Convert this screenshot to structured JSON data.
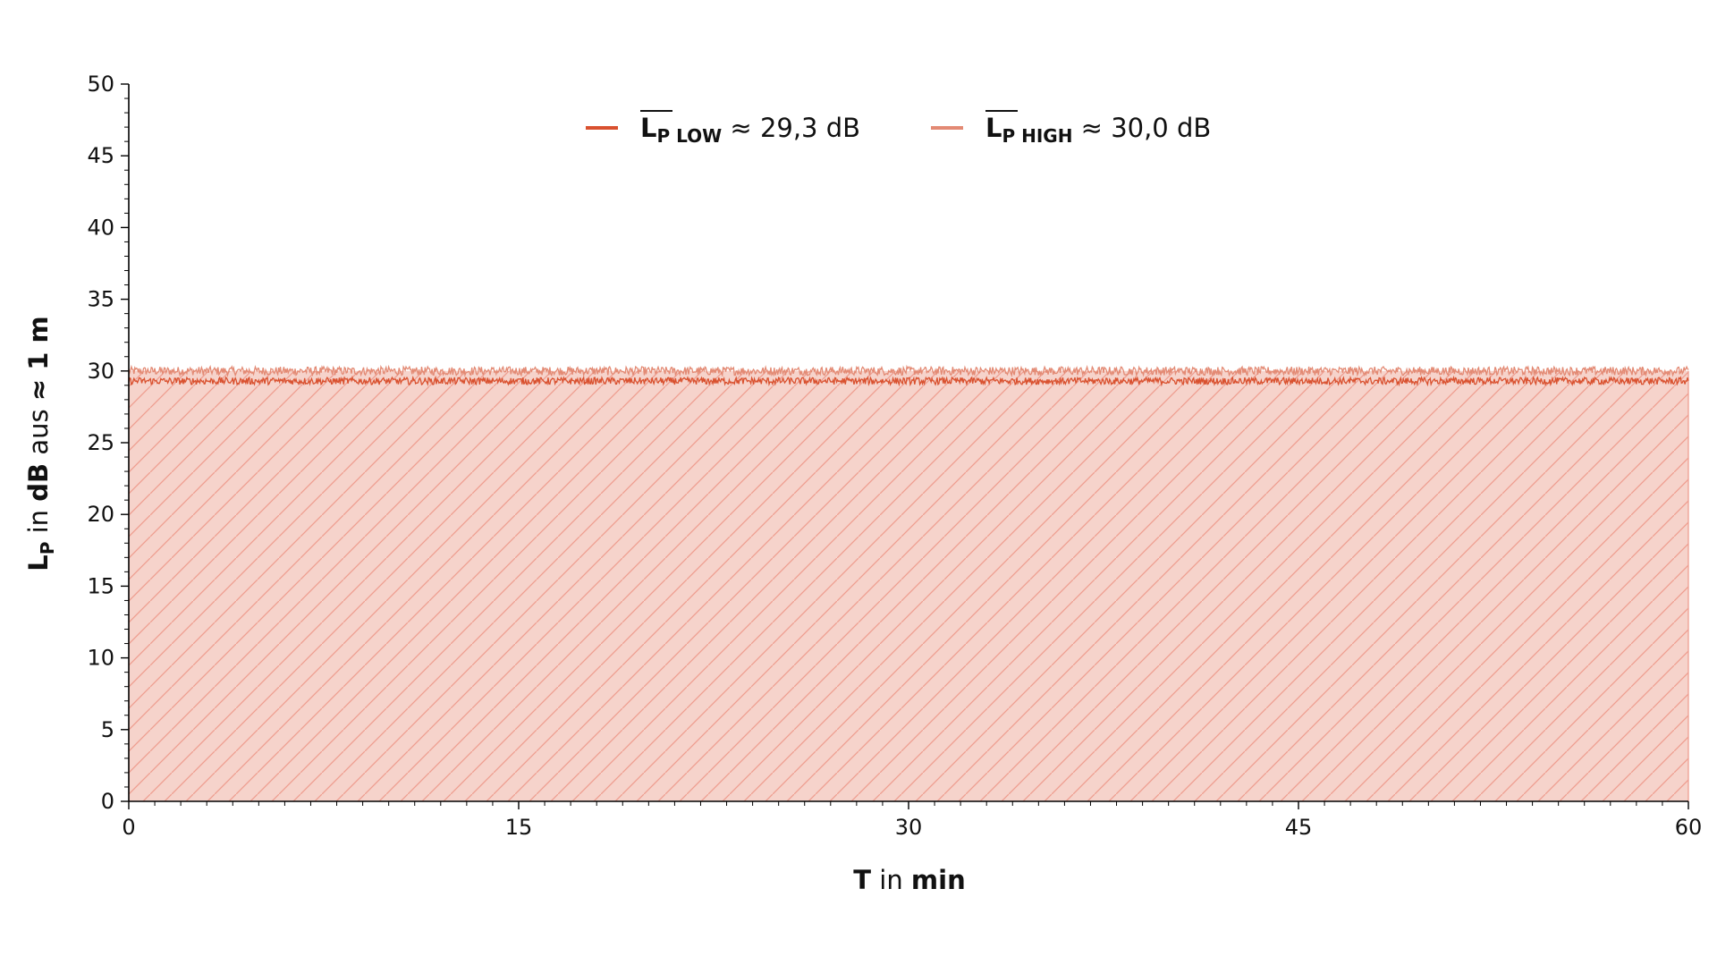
{
  "chart_data": {
    "type": "line",
    "title": "",
    "xlabel": {
      "bold1": "T",
      "regular": " in ",
      "bold2": "min"
    },
    "ylabel": {
      "bold_main": "L",
      "sub": "P",
      "regular1": " in ",
      "bold_unit": "dB",
      "regular2": " aus ",
      "bold_dist": "≈ 1 m"
    },
    "xlim": [
      0,
      60
    ],
    "ylim": [
      0,
      50
    ],
    "x_ticks": [
      0,
      15,
      30,
      45,
      60
    ],
    "x_tick_labels": [
      "0",
      "15",
      "30",
      "45",
      "60"
    ],
    "y_ticks": [
      0,
      5,
      10,
      15,
      20,
      25,
      30,
      35,
      40,
      45,
      50
    ],
    "y_tick_labels": [
      "0",
      "5",
      "10",
      "15",
      "20",
      "25",
      "30",
      "35",
      "40",
      "45",
      "50"
    ],
    "grid": false,
    "legend_position": "top-center",
    "fill_under": {
      "upper_value": 30.0,
      "lower_value": 0,
      "hatch": "diagonal"
    },
    "series": [
      {
        "name": "L_P LOW",
        "legend": {
          "main": "L",
          "sub": "P LOW",
          "value_text": " ≈ 29,3 dB"
        },
        "mean": 29.3,
        "noise_amplitude": 0.25,
        "color": "#d9512f"
      },
      {
        "name": "L_P HIGH",
        "legend": {
          "main": "L",
          "sub": "P HIGH",
          "value_text": " ≈ 30,0 dB"
        },
        "mean": 30.0,
        "noise_amplitude": 0.3,
        "color": "#e38a74"
      }
    ],
    "colors": {
      "fill": "#f6d3cb",
      "hatch": "#ee9e90",
      "axis": "#000000"
    }
  }
}
